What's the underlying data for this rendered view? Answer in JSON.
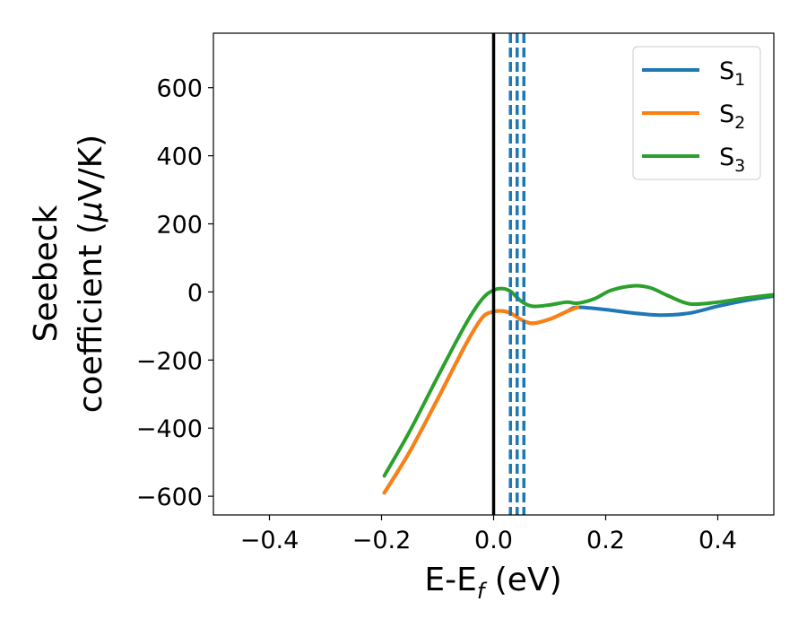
{
  "chart_data": {
    "type": "line",
    "xlabel": "E-E",
    "xlabel_sub": "f",
    "xlabel_unit": " (eV)",
    "ylabel_line1": "Seebeck",
    "ylabel_line2": "coefficient  (",
    "ylabel_mu": "μ",
    "ylabel_unit": "V/K)",
    "xlim": [
      -0.5,
      0.5
    ],
    "ylim": [
      -655,
      760
    ],
    "xticks": [
      -0.4,
      -0.2,
      0.0,
      0.2,
      0.4
    ],
    "xtick_labels": [
      "−0.4",
      "−0.2",
      "0.0",
      "0.2",
      "0.4"
    ],
    "yticks": [
      600,
      400,
      200,
      0,
      -200,
      -400,
      -600
    ],
    "ytick_labels": [
      "600",
      "400",
      "200",
      "0",
      "−200",
      "−400",
      "−600"
    ],
    "grid": false,
    "legend_position": "top-right",
    "vlines": [
      {
        "x": 0.0,
        "style": "solid",
        "color": "#000000"
      },
      {
        "x": 0.03,
        "style": "dashed",
        "color": "#1f77b4"
      },
      {
        "x": 0.042,
        "style": "dashed",
        "color": "#1f77b4"
      },
      {
        "x": 0.054,
        "style": "dashed",
        "color": "#1f77b4"
      }
    ],
    "series": [
      {
        "legend_base": "S",
        "legend_sub": "1",
        "color": "#1f77b4",
        "x": [
          -0.195,
          -0.15,
          -0.1,
          -0.05,
          -0.02,
          0.0,
          0.015,
          0.03,
          0.05,
          0.07,
          0.1,
          0.13,
          0.15,
          0.2,
          0.25,
          0.3,
          0.35,
          0.4,
          0.45,
          0.5
        ],
        "y": [
          -590,
          -470,
          -315,
          -155,
          -75,
          -58,
          -56,
          -62,
          -82,
          -92,
          -80,
          -58,
          -45,
          -52,
          -62,
          -68,
          -62,
          -42,
          -25,
          -12
        ]
      },
      {
        "legend_base": "S",
        "legend_sub": "2",
        "color": "#ff7f0e",
        "x": [
          -0.195,
          -0.15,
          -0.1,
          -0.05,
          -0.02,
          0.0,
          0.015,
          0.03,
          0.05,
          0.07,
          0.1,
          0.13,
          0.15
        ],
        "y": [
          -590,
          -470,
          -315,
          -155,
          -75,
          -58,
          -56,
          -62,
          -82,
          -92,
          -80,
          -58,
          -45
        ]
      },
      {
        "legend_base": "S",
        "legend_sub": "3",
        "color": "#2ca02c",
        "x": [
          -0.195,
          -0.15,
          -0.1,
          -0.05,
          -0.02,
          0.0,
          0.015,
          0.03,
          0.05,
          0.07,
          0.1,
          0.13,
          0.15,
          0.18,
          0.21,
          0.25,
          0.28,
          0.31,
          0.35,
          0.4,
          0.45,
          0.5
        ],
        "y": [
          -540,
          -410,
          -250,
          -95,
          -20,
          5,
          10,
          2,
          -28,
          -42,
          -38,
          -30,
          -33,
          -20,
          5,
          18,
          12,
          -10,
          -35,
          -30,
          -18,
          -8
        ]
      }
    ]
  }
}
